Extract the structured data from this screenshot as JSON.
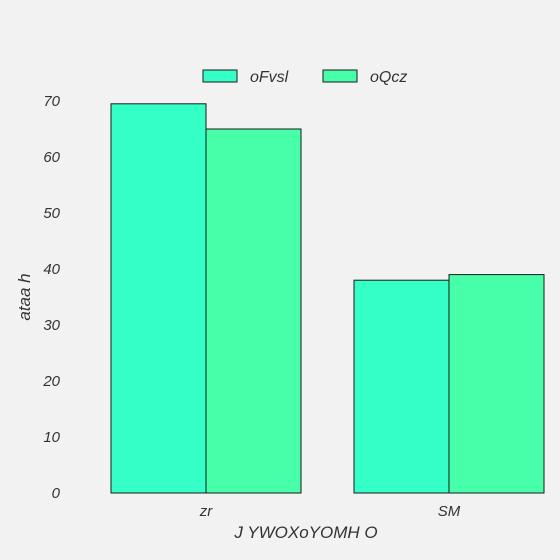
{
  "chart_data": {
    "type": "bar",
    "title": "",
    "xlabel": "J  YWOXoYOMH O",
    "ylabel": "ataa h",
    "categories": [
      "zr",
      "SM"
    ],
    "series": [
      {
        "name": "oFvsl",
        "values": [
          69.5,
          38
        ],
        "color": "#33ffc6"
      },
      {
        "name": "oQcz",
        "values": [
          65,
          39
        ],
        "color": "#47ffa8"
      }
    ],
    "ylim": [
      0,
      70
    ],
    "yticks": [
      0,
      10,
      20,
      30,
      40,
      50,
      60,
      70
    ],
    "grid": false,
    "legend_position": "top-center",
    "bar_edge_color": "#1a1a1a",
    "background_color": "#f2f2f2"
  }
}
